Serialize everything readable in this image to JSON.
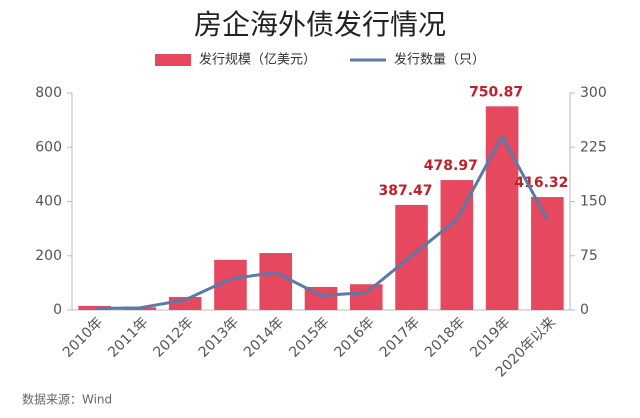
{
  "chart_data": {
    "type": "bar-line",
    "title": "房企海外债发行情况",
    "source": "数据来源：Wind",
    "categories": [
      "2010年",
      "2011年",
      "2012年",
      "2013年",
      "2014年",
      "2015年",
      "2016年",
      "2017年",
      "2018年",
      "2019年",
      "2020年以来"
    ],
    "series": [
      {
        "name": "发行规模（亿美元）",
        "type": "bar",
        "color": "#e5485f",
        "values": [
          15,
          10,
          48,
          185,
          210,
          85,
          95,
          387.47,
          478.97,
          750.87,
          416.32
        ],
        "value_labels": [
          null,
          null,
          null,
          null,
          null,
          null,
          null,
          "387.47",
          "478.97",
          "750.87",
          "416.32"
        ]
      },
      {
        "name": "发行数量（只）",
        "type": "line",
        "axis": "y2",
        "color": "#5b7aa8",
        "values": [
          2,
          3,
          14,
          43,
          52,
          20,
          24,
          75,
          125,
          240,
          125
        ]
      }
    ],
    "ylim": [
      0,
      800
    ],
    "yticks": [
      0,
      200,
      400,
      600,
      800
    ],
    "y2lim": [
      0,
      300
    ],
    "y2ticks": [
      0,
      75,
      150,
      225,
      300
    ],
    "grid": false
  }
}
